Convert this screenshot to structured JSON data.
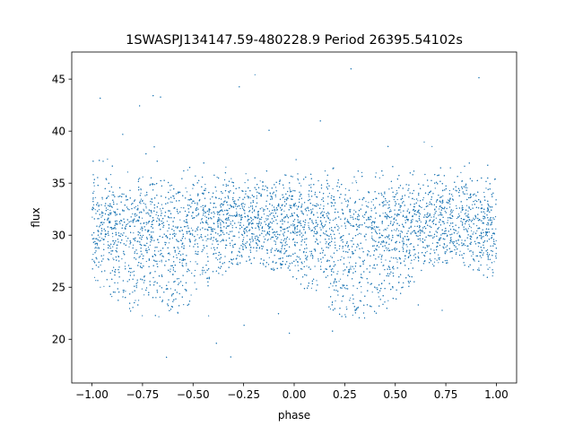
{
  "chart_data": {
    "type": "scatter",
    "title": "1SWASPJ134147.59-480228.9 Period 26395.54102s",
    "xlabel": "phase",
    "ylabel": "flux",
    "xlim": [
      -1.1,
      1.1
    ],
    "ylim": [
      15.8,
      47.6
    ],
    "x_ticks": [
      -1.0,
      -0.75,
      -0.5,
      -0.25,
      0.0,
      0.25,
      0.5,
      0.75,
      1.0
    ],
    "x_tick_labels": [
      "−1.00",
      "−0.75",
      "−0.50",
      "−0.25",
      "0.00",
      "0.25",
      "0.50",
      "0.75",
      "1.00"
    ],
    "y_ticks": [
      20,
      25,
      30,
      35,
      40,
      45
    ],
    "y_tick_labels": [
      "20",
      "25",
      "30",
      "35",
      "40",
      "45"
    ],
    "grid": false,
    "legend": "none",
    "marker_color": "#1f77b4",
    "series": [
      {
        "phase_range": [
          -1.0,
          1.0
        ],
        "profile": [
          {
            "phase": -1.0,
            "median_flux": 31.8,
            "upper_flux": 36.0,
            "lower_flux": 25.5
          },
          {
            "phase": -0.9,
            "median_flux": 31.6,
            "upper_flux": 35.8,
            "lower_flux": 24.0
          },
          {
            "phase": -0.8,
            "median_flux": 31.2,
            "upper_flux": 35.6,
            "lower_flux": 22.5
          },
          {
            "phase": -0.7,
            "median_flux": 30.8,
            "upper_flux": 35.4,
            "lower_flux": 21.8
          },
          {
            "phase": -0.6,
            "median_flux": 31.0,
            "upper_flux": 35.5,
            "lower_flux": 22.0
          },
          {
            "phase": -0.5,
            "median_flux": 31.4,
            "upper_flux": 35.8,
            "lower_flux": 23.5
          },
          {
            "phase": -0.4,
            "median_flux": 31.8,
            "upper_flux": 36.0,
            "lower_flux": 25.5
          },
          {
            "phase": -0.3,
            "median_flux": 32.0,
            "upper_flux": 36.0,
            "lower_flux": 27.0
          },
          {
            "phase": -0.2,
            "median_flux": 32.0,
            "upper_flux": 36.0,
            "lower_flux": 27.5
          },
          {
            "phase": -0.1,
            "median_flux": 31.8,
            "upper_flux": 35.8,
            "lower_flux": 26.5
          },
          {
            "phase": 0.0,
            "median_flux": 31.8,
            "upper_flux": 36.0,
            "lower_flux": 25.5
          },
          {
            "phase": 0.1,
            "median_flux": 31.6,
            "upper_flux": 35.8,
            "lower_flux": 24.0
          },
          {
            "phase": 0.2,
            "median_flux": 31.2,
            "upper_flux": 35.6,
            "lower_flux": 22.5
          },
          {
            "phase": 0.3,
            "median_flux": 30.8,
            "upper_flux": 35.4,
            "lower_flux": 21.8
          },
          {
            "phase": 0.4,
            "median_flux": 31.0,
            "upper_flux": 35.5,
            "lower_flux": 22.0
          },
          {
            "phase": 0.5,
            "median_flux": 31.4,
            "upper_flux": 35.8,
            "lower_flux": 23.5
          },
          {
            "phase": 0.6,
            "median_flux": 31.8,
            "upper_flux": 36.0,
            "lower_flux": 25.5
          },
          {
            "phase": 0.7,
            "median_flux": 32.0,
            "upper_flux": 36.0,
            "lower_flux": 27.0
          },
          {
            "phase": 0.8,
            "median_flux": 32.0,
            "upper_flux": 36.0,
            "lower_flux": 27.5
          },
          {
            "phase": 0.9,
            "median_flux": 31.8,
            "upper_flux": 35.8,
            "lower_flux": 26.5
          },
          {
            "phase": 1.0,
            "median_flux": 31.8,
            "upper_flux": 36.0,
            "lower_flux": 25.5
          }
        ],
        "outlier_flux_range": [
          17.5,
          46.2
        ]
      }
    ]
  }
}
